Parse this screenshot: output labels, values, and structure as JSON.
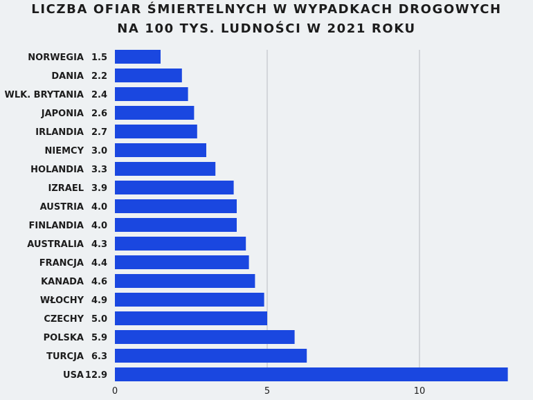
{
  "chart_data": {
    "type": "bar",
    "orientation": "horizontal",
    "title_lines": [
      "LICZBA OFIAR ŚMIERTELNYCH W WYPADKACH DROGOWYCH",
      "NA 100 TYS. LUDNOŚCI W 2021 ROKU"
    ],
    "xlabel": "",
    "ylabel": "",
    "categories": [
      "NORWEGIA",
      "DANIA",
      "WLK. BRYTANIA",
      "JAPONIA",
      "IRLANDIA",
      "NIEMCY",
      "HOLANDIA",
      "IZRAEL",
      "AUSTRIA",
      "FINLANDIA",
      "AUSTRALIA",
      "FRANCJA",
      "KANADA",
      "WŁOCHY",
      "CZECHY",
      "POLSKA",
      "TURCJA",
      "USA"
    ],
    "values": [
      1.5,
      2.2,
      2.4,
      2.6,
      2.7,
      3.0,
      3.3,
      3.9,
      4.0,
      4.0,
      4.3,
      4.4,
      4.6,
      4.9,
      5.0,
      5.9,
      6.3,
      12.9
    ],
    "value_labels": [
      "1.5",
      "2.2",
      "2.4",
      "2.6",
      "2.7",
      "3.0",
      "3.3",
      "3.9",
      "4.0",
      "4.0",
      "4.3",
      "4.4",
      "4.6",
      "4.9",
      "5.0",
      "5.9",
      "6.3",
      "12.9"
    ],
    "xticks": [
      0,
      5,
      10
    ],
    "xlim": [
      0,
      13
    ],
    "grid": "vertical lines",
    "bar_color": "#1a47e0",
    "grid_color": "#b8bcc0"
  }
}
